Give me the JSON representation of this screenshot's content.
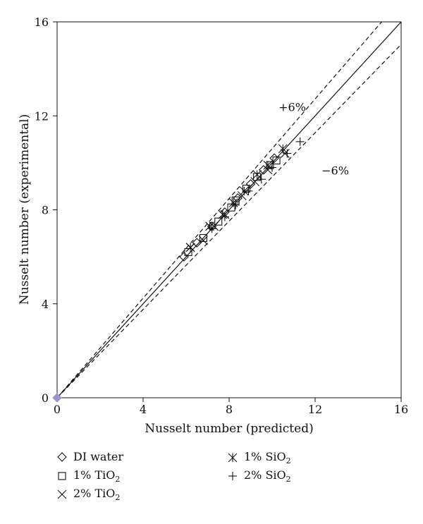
{
  "chart_data": {
    "type": "scatter",
    "title": "",
    "xlabel": "Nusselt number (predicted)",
    "ylabel": "Nusselt number (experimental)",
    "xlim": [
      0,
      16
    ],
    "ylim": [
      0,
      16
    ],
    "xticks": [
      0,
      4,
      8,
      12,
      16
    ],
    "yticks": [
      0,
      4,
      8,
      12,
      16
    ],
    "grid": false,
    "legend_position": "bottom",
    "lines": [
      {
        "name": "",
        "style": "solid",
        "slope": 1.0
      },
      {
        "name": "+6%",
        "style": "dashed",
        "slope": 1.06
      },
      {
        "name": "−6%",
        "style": "dashed",
        "slope": 0.94
      }
    ],
    "annotations": [
      {
        "text": "+6%",
        "x": 10.3,
        "y": 12.2
      },
      {
        "text": "−6%",
        "x": 12.3,
        "y": 9.5
      }
    ],
    "origin_marker": {
      "x": 0,
      "y": 0,
      "color": "#9b95c9"
    },
    "series": [
      {
        "name": "DI water",
        "marker": "diamond",
        "x": [
          5.9,
          6.5,
          7.2,
          7.8,
          8.4,
          9.0,
          9.6,
          10.1
        ],
        "y": [
          6.0,
          6.6,
          7.3,
          7.9,
          8.5,
          9.1,
          9.7,
          10.2
        ]
      },
      {
        "name": "1% TiO",
        "sub": "2",
        "marker": "square",
        "x": [
          6.1,
          6.8,
          7.5,
          8.1,
          8.3,
          8.8,
          9.3,
          9.9,
          10.2
        ],
        "y": [
          6.2,
          6.8,
          7.5,
          8.1,
          8.4,
          8.9,
          9.4,
          9.9,
          10.1
        ]
      },
      {
        "name": "2% TiO",
        "sub": "2",
        "marker": "x",
        "x": [
          6.2,
          6.8,
          7.3,
          7.8,
          8.6,
          9.2,
          9.8,
          10.6
        ],
        "y": [
          6.4,
          6.7,
          7.3,
          7.8,
          8.6,
          9.2,
          9.7,
          10.4
        ]
      },
      {
        "name": "1% SiO",
        "sub": "2",
        "marker": "asterisk",
        "x": [
          6.2,
          7.1,
          7.7,
          8.2,
          8.7,
          9.3,
          9.8,
          10.5
        ],
        "y": [
          6.4,
          7.3,
          7.8,
          8.3,
          8.8,
          9.5,
          9.9,
          10.6
        ]
      },
      {
        "name": "2% SiO",
        "sub": "2",
        "marker": "plus",
        "x": [
          7.2,
          7.8,
          8.3,
          8.9,
          9.5,
          10.0,
          10.7,
          11.3
        ],
        "y": [
          7.2,
          7.7,
          8.2,
          8.8,
          9.3,
          9.8,
          10.4,
          10.9
        ]
      }
    ]
  }
}
